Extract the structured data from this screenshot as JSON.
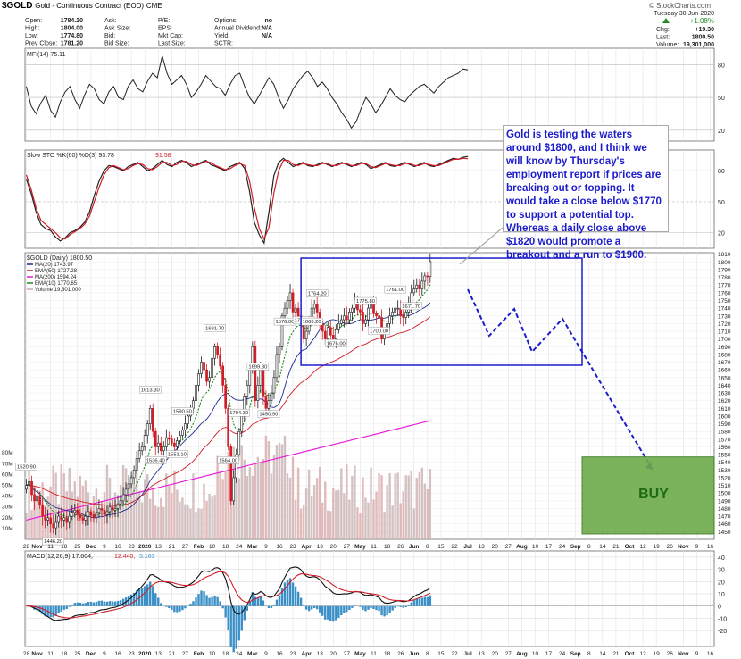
{
  "header": {
    "symbol": "$GOLD",
    "name": "Gold - Continuous Contract (EOD)",
    "exchange": "CME",
    "watermark": "© StockCharts.com",
    "date": "Tuesday 30-Jun-2020",
    "stats": [
      {
        "label": "Open:",
        "value": "1784.20"
      },
      {
        "label": "High:",
        "value": "1804.00"
      },
      {
        "label": "Low:",
        "value": "1774.80"
      },
      {
        "label": "Prev Close:",
        "value": "1781.20"
      },
      {
        "label": "Ask:",
        "value": ""
      },
      {
        "label": "Ask Size:",
        "value": ""
      },
      {
        "label": "Bid:",
        "value": ""
      },
      {
        "label": "Bid Size:",
        "value": ""
      },
      {
        "label": "P/E:",
        "value": ""
      },
      {
        "label": "EPS:",
        "value": ""
      },
      {
        "label": "Mkt Cap:",
        "value": ""
      },
      {
        "label": "Last Size:",
        "value": ""
      },
      {
        "label": "Options:",
        "value": "no"
      },
      {
        "label": "Annual Dividend:",
        "value": "N/A"
      },
      {
        "label": "Yield:",
        "value": "N/A"
      },
      {
        "label": "SCTR:",
        "value": ""
      }
    ],
    "pct_change": "+1.08%",
    "right_stats": [
      {
        "label": "Chg:",
        "value": "+19.30"
      },
      {
        "label": "Last:",
        "value": "1800.50"
      },
      {
        "label": "Volume:",
        "value": "19,301,000"
      }
    ]
  },
  "colors": {
    "up": "#1a1a1a",
    "down": "#d11d27",
    "ma20": "#1f2b8f",
    "ema50": "#d11d27",
    "ma200": "#e61ed8",
    "ema10": "#1d8a1d",
    "annotation": "#1c1ccc",
    "buy_fill": "#6dab4a",
    "buy_text": "#1c6b12",
    "macd_hist": "#3a8fc7"
  },
  "chart_data": [
    {
      "type": "line",
      "title": "MFI(14) 75.11",
      "yticks": [
        20,
        50,
        80
      ],
      "ylim": [
        10,
        95
      ],
      "x": [
        0,
        2,
        4,
        6,
        8,
        10,
        12,
        14,
        16,
        18,
        20,
        22,
        24,
        26,
        28,
        30,
        32,
        34,
        36,
        38,
        40,
        42,
        44,
        46,
        48,
        50,
        52,
        54,
        56,
        58,
        60,
        62,
        64,
        66,
        68,
        70,
        72,
        74,
        76,
        78,
        80,
        82,
        84,
        86,
        88,
        90,
        92,
        94,
        96,
        98,
        100,
        102,
        104,
        106,
        108,
        110,
        112,
        114,
        116,
        118,
        120,
        122,
        124,
        126,
        128,
        130,
        132,
        134,
        136,
        138,
        140,
        142,
        144,
        146,
        148,
        150,
        152,
        154,
        156,
        158,
        160,
        162,
        164,
        166,
        168,
        170,
        172,
        174,
        176,
        178,
        180,
        182
      ],
      "values": [
        60,
        42,
        35,
        45,
        52,
        38,
        32,
        46,
        55,
        60,
        48,
        40,
        52,
        62,
        58,
        48,
        44,
        55,
        60,
        50,
        48,
        60,
        66,
        58,
        55,
        65,
        72,
        68,
        88,
        72,
        62,
        66,
        70,
        62,
        50,
        55,
        62,
        70,
        65,
        60,
        58,
        52,
        62,
        70,
        72,
        60,
        50,
        44,
        52,
        60,
        68,
        62,
        50,
        40,
        48,
        58,
        64,
        70,
        74,
        68,
        60,
        64,
        58,
        50,
        44,
        36,
        30,
        22,
        28,
        40,
        50,
        44,
        36,
        42,
        50,
        58,
        52,
        48,
        46,
        52,
        56,
        60,
        62,
        58,
        54,
        60,
        64,
        68,
        70,
        72,
        76,
        75.11
      ]
    },
    {
      "type": "line",
      "title": "Slow STO %K(60) %D(3) 93.78, 91.58",
      "series_values": [
        "93.78",
        "91.58"
      ],
      "yticks": [
        20,
        50,
        80
      ],
      "ylim": [
        5,
        100
      ],
      "x": [
        0,
        2,
        4,
        6,
        8,
        10,
        12,
        14,
        16,
        18,
        20,
        22,
        24,
        26,
        28,
        30,
        32,
        34,
        36,
        38,
        40,
        42,
        44,
        46,
        48,
        50,
        52,
        54,
        56,
        58,
        60,
        62,
        64,
        66,
        68,
        70,
        72,
        74,
        76,
        78,
        80,
        82,
        84,
        86,
        88,
        90,
        92,
        94,
        96,
        98,
        100,
        102,
        104,
        106,
        108,
        110,
        112,
        114,
        116,
        118,
        120,
        122,
        124,
        126,
        128,
        130,
        132,
        134,
        136,
        138,
        140,
        142,
        144,
        146,
        148,
        150,
        152,
        154,
        156,
        158,
        160,
        162,
        164,
        166,
        168,
        170,
        172,
        174,
        176,
        178,
        180,
        182
      ],
      "series": [
        {
          "values": [
            72,
            58,
            40,
            28,
            24,
            22,
            16,
            12,
            15,
            20,
            22,
            25,
            30,
            40,
            56,
            70,
            80,
            85,
            84,
            82,
            80,
            84,
            86,
            88,
            84,
            80,
            82,
            86,
            90,
            86,
            84,
            88,
            90,
            88,
            84,
            86,
            88,
            90,
            86,
            84,
            82,
            80,
            84,
            86,
            88,
            82,
            60,
            30,
            18,
            10,
            40,
            75,
            88,
            92,
            88,
            84,
            86,
            88,
            85,
            84,
            86,
            88,
            86,
            84,
            86,
            88,
            86,
            84,
            86,
            88,
            86,
            82,
            84,
            86,
            88,
            85,
            84,
            86,
            88,
            86,
            84,
            86,
            88,
            85,
            84,
            86,
            88,
            90,
            92,
            91,
            93,
            93.78
          ]
        },
        {
          "values": [
            76,
            62,
            44,
            32,
            28,
            24,
            20,
            15,
            14,
            18,
            21,
            24,
            28,
            36,
            50,
            64,
            76,
            83,
            85,
            83,
            81,
            82,
            85,
            87,
            86,
            82,
            81,
            84,
            88,
            88,
            85,
            86,
            89,
            89,
            86,
            85,
            87,
            89,
            88,
            85,
            83,
            81,
            82,
            85,
            87,
            85,
            70,
            44,
            24,
            14,
            25,
            58,
            80,
            90,
            90,
            86,
            85,
            87,
            86,
            85,
            85,
            87,
            87,
            85,
            85,
            87,
            87,
            85,
            85,
            87,
            87,
            84,
            83,
            85,
            87,
            86,
            85,
            85,
            87,
            87,
            85,
            85,
            87,
            86,
            85,
            85,
            87,
            89,
            91,
            91,
            92,
            91.58
          ]
        }
      ]
    },
    {
      "type": "candlestick",
      "title": "$GOLD (Daily) 1800.50",
      "legend": [
        {
          "label": "MA(20) 1743.97",
          "color": "#1f2b8f"
        },
        {
          "label": "EMA(50) 1727.28",
          "color": "#d11d27"
        },
        {
          "label": "MA(200) 1594.24",
          "color": "#e61ed8"
        },
        {
          "label": "EMA(10) 1770.65",
          "color": "#1d8a1d"
        },
        {
          "label": "Volume 19,301,000",
          "color": "#c8a8a8"
        }
      ],
      "ylim": [
        1440,
        1812
      ],
      "yticks": [
        1450,
        1460,
        1470,
        1480,
        1490,
        1500,
        1510,
        1520,
        1530,
        1540,
        1550,
        1560,
        1570,
        1580,
        1590,
        1600,
        1610,
        1620,
        1630,
        1640,
        1650,
        1660,
        1670,
        1680,
        1690,
        1700,
        1710,
        1720,
        1730,
        1740,
        1750,
        1760,
        1770,
        1780,
        1790,
        1800,
        1810
      ],
      "volume_ticks": [
        "10M",
        "20M",
        "30M",
        "40M",
        "50M",
        "60M",
        "70M",
        "80M"
      ],
      "volume_max": 80,
      "x_labels": [
        "28",
        "Nov",
        "11",
        "18",
        "25",
        "Dec",
        "9",
        "16",
        "23",
        "2020",
        "13",
        "21",
        "27",
        "Feb",
        "10",
        "18",
        "24",
        "Mar",
        "9",
        "16",
        "23",
        "Apr",
        "13",
        "20",
        "27",
        "May",
        "11",
        "18",
        "26",
        "Jun",
        "8",
        "15",
        "22",
        "Jul",
        "13",
        "20",
        "27",
        "Aug",
        "10",
        "17",
        "24",
        "Sep",
        "8",
        "14",
        "21",
        "Oct",
        "12",
        "19",
        "26",
        "Nov",
        "9",
        "16"
      ],
      "x_label_pos": [
        0,
        4,
        9,
        14,
        19,
        24,
        29,
        34,
        39,
        44,
        49,
        54,
        59,
        64,
        69,
        74,
        79,
        84,
        89,
        94,
        99,
        104,
        109,
        114,
        119,
        124,
        129,
        134,
        139,
        144,
        149,
        154,
        159,
        164,
        169,
        174,
        179,
        184,
        189,
        194,
        199,
        204,
        209,
        214,
        219,
        224,
        229,
        234,
        239,
        244,
        249,
        254
      ],
      "closes": [
        1510,
        1515,
        1498,
        1490,
        1495,
        1485,
        1470,
        1465,
        1468,
        1460,
        1455,
        1462,
        1470,
        1465,
        1468,
        1462,
        1470,
        1475,
        1478,
        1472,
        1468,
        1465,
        1470,
        1476,
        1472,
        1468,
        1475,
        1480,
        1478,
        1472,
        1476,
        1482,
        1478,
        1480,
        1486,
        1490,
        1498,
        1505,
        1512,
        1520,
        1530,
        1545,
        1555,
        1560,
        1575,
        1590,
        1610,
        1580,
        1560,
        1565,
        1555,
        1560,
        1572,
        1570,
        1565,
        1560,
        1568,
        1575,
        1582,
        1590,
        1600,
        1610,
        1620,
        1640,
        1655,
        1670,
        1660,
        1645,
        1650,
        1675,
        1690,
        1680,
        1665,
        1640,
        1610,
        1560,
        1490,
        1520,
        1550,
        1580,
        1600,
        1625,
        1640,
        1660,
        1690,
        1620,
        1640,
        1660,
        1625,
        1610,
        1620,
        1630,
        1650,
        1680,
        1690,
        1730,
        1740,
        1750,
        1760,
        1735,
        1740,
        1730,
        1720,
        1700,
        1710,
        1720,
        1740,
        1745,
        1735,
        1720,
        1710,
        1700,
        1715,
        1705,
        1700,
        1712,
        1720,
        1725,
        1730,
        1725,
        1735,
        1740,
        1750,
        1738,
        1735,
        1720,
        1725,
        1740,
        1745,
        1733,
        1730,
        1728,
        1700,
        1710,
        1720,
        1730,
        1735,
        1740,
        1740,
        1730,
        1728,
        1735,
        1745,
        1760,
        1765,
        1770,
        1765,
        1775,
        1782,
        1781,
        1800.5
      ],
      "annotations": [
        {
          "label": "1520.90",
          "i": 0,
          "side": "top"
        },
        {
          "label": "1446.20",
          "i": 10,
          "side": "bottom"
        },
        {
          "label": "1613.30",
          "i": 46,
          "side": "top"
        },
        {
          "label": "1536.40",
          "i": 48,
          "side": "bottom"
        },
        {
          "label": "1590.50",
          "i": 58,
          "side": "top"
        },
        {
          "label": "1551.10",
          "i": 56,
          "side": "bottom"
        },
        {
          "label": "1691.70",
          "i": 70,
          "side": "top"
        },
        {
          "label": "1564.00",
          "i": 75,
          "side": "bottom"
        },
        {
          "label": "1704.30",
          "i": 79,
          "side": "top"
        },
        {
          "label": "1699.30",
          "i": 86,
          "side": "top"
        },
        {
          "label": "1450.90",
          "i": 90,
          "side": "bottom"
        },
        {
          "label": "1576.00",
          "i": 96,
          "side": "bottom"
        },
        {
          "label": "1788.80",
          "i": 103,
          "side": "top"
        },
        {
          "label": "1666.20",
          "i": 106,
          "side": "bottom"
        },
        {
          "label": "1764.20",
          "i": 108,
          "side": "top"
        },
        {
          "label": "1676.00",
          "i": 115,
          "side": "bottom"
        },
        {
          "label": "1775.80",
          "i": 126,
          "side": "top"
        },
        {
          "label": "1700.00",
          "i": 131,
          "side": "bottom"
        },
        {
          "label": "1761.00",
          "i": 137,
          "side": "top"
        },
        {
          "label": "1671.70",
          "i": 143,
          "side": "bottom"
        }
      ]
    },
    {
      "type": "line",
      "title": "MACD(12,26,9) 17.604, 12.440, 5.163",
      "series_values": [
        "17.604",
        "12.440",
        "5.163"
      ],
      "yticks": [
        -20,
        -10,
        0,
        10,
        20,
        30,
        40
      ],
      "ylim": [
        -33,
        45
      ]
    }
  ],
  "annotation": {
    "callout": "Gold is testing the waters around $1800, and I think we will know by Thursday's employment report if prices are breaking out or topping. It would take a close below $1770 to support a potential top. Whereas a daily close above $1820 would promote a breakout and a run to $1900.",
    "buy_label": "BUY"
  }
}
